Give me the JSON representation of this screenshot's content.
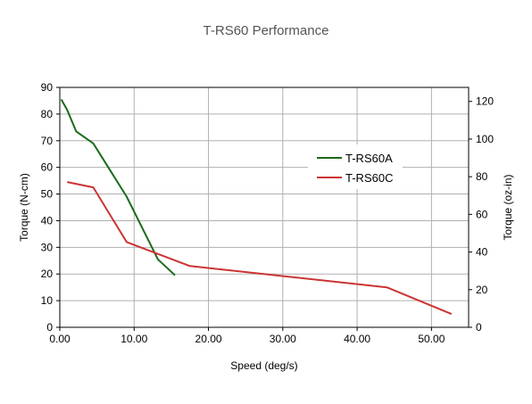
{
  "chart_data": {
    "type": "line",
    "title": "T-RS60 Performance",
    "xlabel": "Speed (deg/s)",
    "ylabel": "Torque (N-cm)",
    "y2label": "Torque (oz-in)",
    "xlim": [
      0,
      55
    ],
    "ylim": [
      0,
      90
    ],
    "y2lim": [
      0,
      127.45
    ],
    "x_ticks": [
      "0.00",
      "10.00",
      "20.00",
      "30.00",
      "40.00",
      "50.00"
    ],
    "y_ticks": [
      "0",
      "10",
      "20",
      "30",
      "40",
      "50",
      "60",
      "70",
      "80",
      "90"
    ],
    "y2_ticks": [
      "0",
      "20",
      "40",
      "60",
      "80",
      "100",
      "120"
    ],
    "grid": true,
    "legend_position": "right-middle",
    "series": [
      {
        "name": "T-RS60A",
        "color": "#1a6b1a",
        "points": [
          [
            0.2,
            85.5
          ],
          [
            1.0,
            81.5
          ],
          [
            2.2,
            73.5
          ],
          [
            4.5,
            69.0
          ],
          [
            9.0,
            49.0
          ],
          [
            13.2,
            25.5
          ],
          [
            15.5,
            19.5
          ]
        ]
      },
      {
        "name": "T-RS60C",
        "color": "#cc3333",
        "points": [
          [
            1.0,
            54.5
          ],
          [
            4.5,
            52.5
          ],
          [
            9.0,
            32.0
          ],
          [
            17.5,
            23.0
          ],
          [
            44.0,
            15.0
          ],
          [
            52.7,
            5.0
          ]
        ]
      }
    ]
  }
}
